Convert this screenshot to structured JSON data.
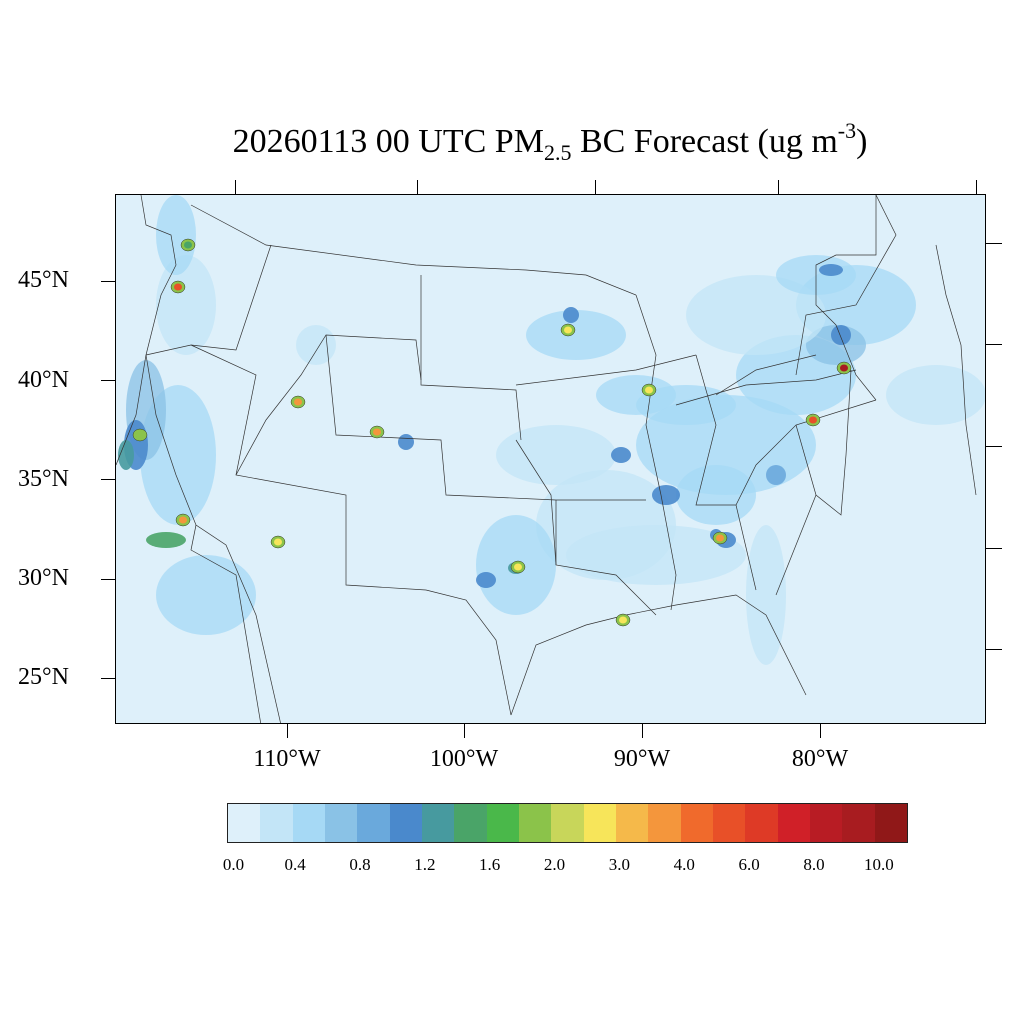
{
  "title": {
    "prefix": "20260113 00 UTC PM",
    "subscript": "2.5",
    "middle": " BC Forecast (ug m",
    "superscript": "-3",
    "suffix": ")"
  },
  "map": {
    "projection": "Lambert conformal, CONUS",
    "latitude_labels": [
      "45°N",
      "40°N",
      "35°N",
      "30°N",
      "25°N"
    ],
    "longitude_labels": [
      "110°W",
      "100°W",
      "90°W",
      "80°W"
    ],
    "background_level_color": "#def0fa",
    "hotspots": [
      {
        "area": "Portland OR",
        "level": 4.0
      },
      {
        "area": "Seattle WA",
        "level": 1.2
      },
      {
        "area": "San Francisco Bay CA",
        "level": 1.6
      },
      {
        "area": "Los Angeles CA",
        "level": 3.0
      },
      {
        "area": "Salt Lake City UT",
        "level": 3.0
      },
      {
        "area": "Denver CO",
        "level": 3.0
      },
      {
        "area": "Phoenix AZ",
        "level": 2.0
      },
      {
        "area": "Minneapolis MN",
        "level": 2.0
      },
      {
        "area": "Chicago IL",
        "level": 2.0
      },
      {
        "area": "Houston TX",
        "level": 2.0
      },
      {
        "area": "Atlanta GA",
        "level": 3.0
      },
      {
        "area": "New Orleans LA",
        "level": 2.0
      },
      {
        "area": "New York NY",
        "level": 8.0
      },
      {
        "area": "Washington DC",
        "level": 4.0
      }
    ]
  },
  "colorbar": {
    "colors": [
      "#def0fa",
      "#c3e5f7",
      "#a6d9f5",
      "#8ac2e6",
      "#6aa9dc",
      "#4a89cc",
      "#479a9f",
      "#4aa468",
      "#4ab84a",
      "#8bc34a",
      "#c8d65a",
      "#f7e55a",
      "#f5b94a",
      "#f4963c",
      "#f06a2c",
      "#e85028",
      "#de3a26",
      "#d02028",
      "#b81c24",
      "#a81c20",
      "#901818"
    ],
    "tick_labels": [
      "0.0",
      "0.4",
      "0.8",
      "1.2",
      "1.6",
      "2.0",
      "3.0",
      "4.0",
      "6.0",
      "8.0",
      "10.0"
    ]
  }
}
